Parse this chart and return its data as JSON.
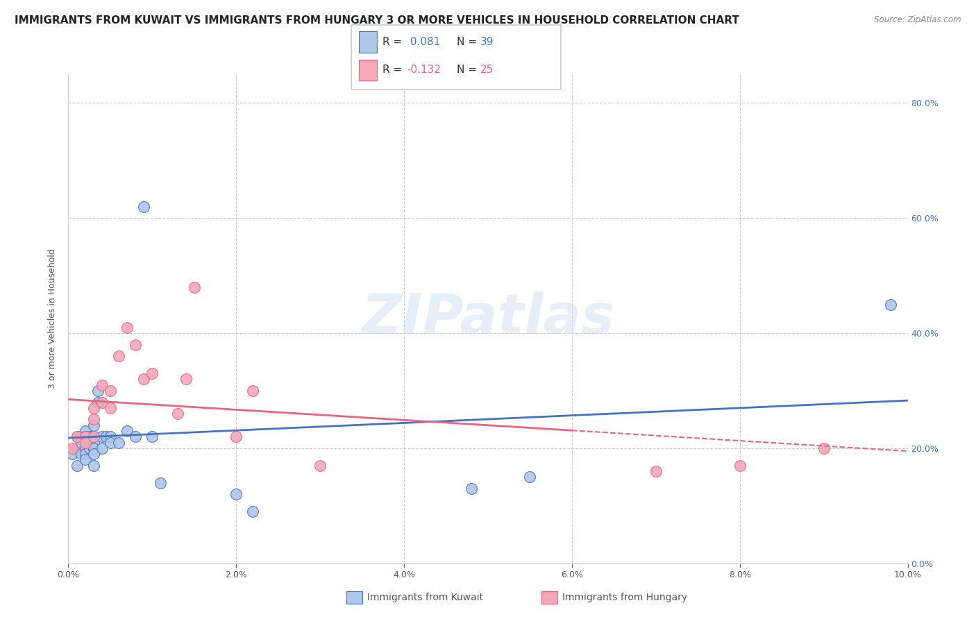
{
  "title": "IMMIGRANTS FROM KUWAIT VS IMMIGRANTS FROM HUNGARY 3 OR MORE VEHICLES IN HOUSEHOLD CORRELATION CHART",
  "source": "Source: ZipAtlas.com",
  "ylabel": "3 or more Vehicles in Household",
  "xlabel": "",
  "legend_label_kuwait": "Immigrants from Kuwait",
  "legend_label_hungary": "Immigrants from Hungary",
  "xlim": [
    0.0,
    0.1
  ],
  "ylim": [
    0.0,
    0.85
  ],
  "xticks": [
    0.0,
    0.02,
    0.04,
    0.06,
    0.08,
    0.1
  ],
  "yticks": [
    0.0,
    0.2,
    0.4,
    0.6,
    0.8
  ],
  "kuwait_color": "#aec6e8",
  "hungary_color": "#f4a8b8",
  "kuwait_line_color": "#4472c4",
  "hungary_line_color": "#e8637e",
  "watermark": "ZIPatlas",
  "kuwait_x": [
    0.0005,
    0.001,
    0.001,
    0.001,
    0.0015,
    0.0015,
    0.0015,
    0.002,
    0.002,
    0.002,
    0.002,
    0.002,
    0.0025,
    0.0025,
    0.0025,
    0.003,
    0.003,
    0.003,
    0.003,
    0.003,
    0.003,
    0.0035,
    0.0035,
    0.004,
    0.004,
    0.0045,
    0.005,
    0.005,
    0.006,
    0.007,
    0.008,
    0.009,
    0.01,
    0.011,
    0.02,
    0.022,
    0.048,
    0.055,
    0.098
  ],
  "kuwait_y": [
    0.19,
    0.22,
    0.2,
    0.17,
    0.22,
    0.21,
    0.19,
    0.23,
    0.22,
    0.2,
    0.19,
    0.18,
    0.22,
    0.21,
    0.2,
    0.24,
    0.22,
    0.21,
    0.2,
    0.19,
    0.17,
    0.28,
    0.3,
    0.22,
    0.2,
    0.22,
    0.22,
    0.21,
    0.21,
    0.23,
    0.22,
    0.62,
    0.22,
    0.14,
    0.12,
    0.09,
    0.13,
    0.15,
    0.45
  ],
  "hungary_x": [
    0.0005,
    0.001,
    0.002,
    0.002,
    0.003,
    0.003,
    0.003,
    0.004,
    0.004,
    0.005,
    0.005,
    0.006,
    0.007,
    0.008,
    0.009,
    0.01,
    0.013,
    0.014,
    0.015,
    0.02,
    0.022,
    0.03,
    0.07,
    0.08,
    0.09
  ],
  "hungary_y": [
    0.2,
    0.22,
    0.22,
    0.21,
    0.27,
    0.25,
    0.22,
    0.31,
    0.28,
    0.3,
    0.27,
    0.36,
    0.41,
    0.38,
    0.32,
    0.33,
    0.26,
    0.32,
    0.48,
    0.22,
    0.3,
    0.17,
    0.16,
    0.17,
    0.2
  ],
  "background_color": "#ffffff",
  "grid_color": "#cccccc",
  "title_fontsize": 11,
  "axis_fontsize": 9,
  "tick_fontsize": 9,
  "r_kuwait": 0.081,
  "n_kuwait": 39,
  "r_hungary": -0.132,
  "n_hungary": 25,
  "intercept_kuwait": 0.218,
  "slope_kuwait": 0.65,
  "intercept_hungary": 0.285,
  "slope_hungary": -0.9
}
